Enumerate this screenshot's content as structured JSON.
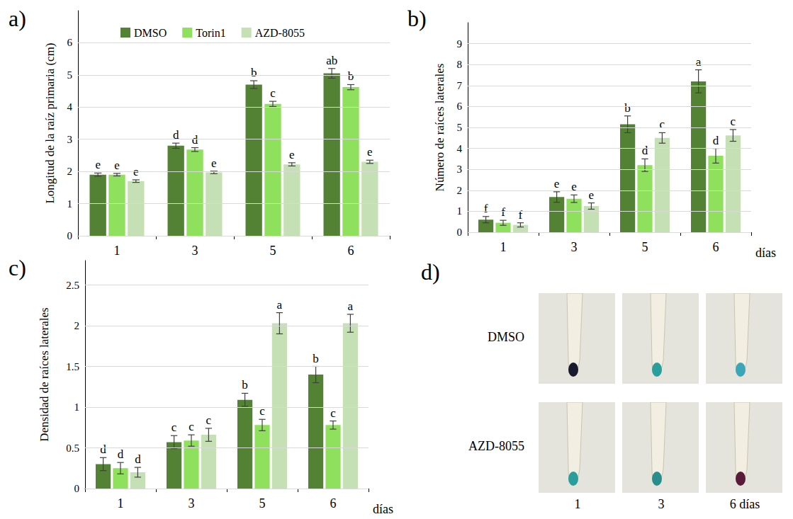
{
  "chart_data": [
    {
      "type": "bar",
      "panel_label": "a)",
      "ylabel": "Longitud de la raíz primaria (cm)",
      "categories": [
        "1",
        "3",
        "5",
        "6"
      ],
      "series": [
        {
          "name": "DMSO",
          "color": "#548235",
          "values": [
            1.9,
            2.8,
            4.7,
            5.05
          ],
          "errors": [
            0.05,
            0.08,
            0.12,
            0.15
          ],
          "letters": [
            "e",
            "d",
            "b",
            "ab"
          ]
        },
        {
          "name": "Torin1",
          "color": "#8fe05c",
          "values": [
            1.9,
            2.68,
            4.1,
            4.62
          ],
          "errors": [
            0.04,
            0.06,
            0.08,
            0.08
          ],
          "letters": [
            "e",
            "d",
            "c",
            "b"
          ]
        },
        {
          "name": "AZD-8055",
          "color": "#c5e0b4",
          "values": [
            1.7,
            1.97,
            2.22,
            2.3
          ],
          "errors": [
            0.04,
            0.04,
            0.05,
            0.05
          ],
          "letters": [
            "e",
            "e",
            "e",
            "e"
          ]
        }
      ],
      "ylim": [
        0,
        7
      ],
      "yticks": [
        0,
        1,
        2,
        3,
        4,
        5,
        6
      ],
      "grid": true,
      "legend": "top"
    },
    {
      "type": "bar",
      "panel_label": "b)",
      "ylabel": "Número de raíces laterales",
      "xlabel": "días",
      "categories": [
        "1",
        "3",
        "5",
        "6"
      ],
      "series": [
        {
          "name": "DMSO",
          "color": "#548235",
          "values": [
            0.6,
            1.68,
            5.15,
            7.2
          ],
          "errors": [
            0.15,
            0.25,
            0.4,
            0.55
          ],
          "letters": [
            "f",
            "e",
            "b",
            "a"
          ]
        },
        {
          "name": "Torin1",
          "color": "#8fe05c",
          "values": [
            0.45,
            1.6,
            3.2,
            3.65
          ],
          "errors": [
            0.12,
            0.18,
            0.3,
            0.35
          ],
          "letters": [
            "f",
            "e",
            "d",
            "d"
          ]
        },
        {
          "name": "AZD-8055",
          "color": "#c5e0b4",
          "values": [
            0.35,
            1.25,
            4.5,
            4.62
          ],
          "errors": [
            0.1,
            0.15,
            0.25,
            0.28
          ],
          "letters": [
            "f",
            "e",
            "c",
            "c"
          ]
        }
      ],
      "ylim": [
        0,
        10
      ],
      "yticks": [
        0,
        1,
        2,
        3,
        4,
        5,
        6,
        7,
        8,
        9
      ],
      "grid": true
    },
    {
      "type": "bar",
      "panel_label": "c)",
      "ylabel": "Densidad de raíces laterales",
      "xlabel": "días",
      "categories": [
        "1",
        "3",
        "5",
        "6"
      ],
      "series": [
        {
          "name": "DMSO",
          "color": "#548235",
          "values": [
            0.3,
            0.57,
            1.09,
            1.4
          ],
          "errors": [
            0.08,
            0.08,
            0.08,
            0.1
          ],
          "letters": [
            "d",
            "c",
            "b",
            "b"
          ]
        },
        {
          "name": "Torin1",
          "color": "#8fe05c",
          "values": [
            0.25,
            0.59,
            0.78,
            0.78
          ],
          "errors": [
            0.07,
            0.07,
            0.07,
            0.05
          ],
          "letters": [
            "d",
            "c",
            "c",
            "c"
          ]
        },
        {
          "name": "AZD-8055",
          "color": "#c5e0b4",
          "values": [
            0.2,
            0.66,
            2.03,
            2.03
          ],
          "errors": [
            0.06,
            0.08,
            0.13,
            0.11
          ],
          "letters": [
            "d",
            "c",
            "a",
            "a"
          ]
        }
      ],
      "ylim": [
        0,
        2.8
      ],
      "yticks": [
        0,
        0.5,
        1,
        1.5,
        2,
        2.5
      ],
      "grid": true
    }
  ],
  "panel_d": {
    "panel_label": "d)",
    "rows": [
      "DMSO",
      "AZD-8055"
    ],
    "columns": [
      "1",
      "3",
      "6 días"
    ]
  }
}
